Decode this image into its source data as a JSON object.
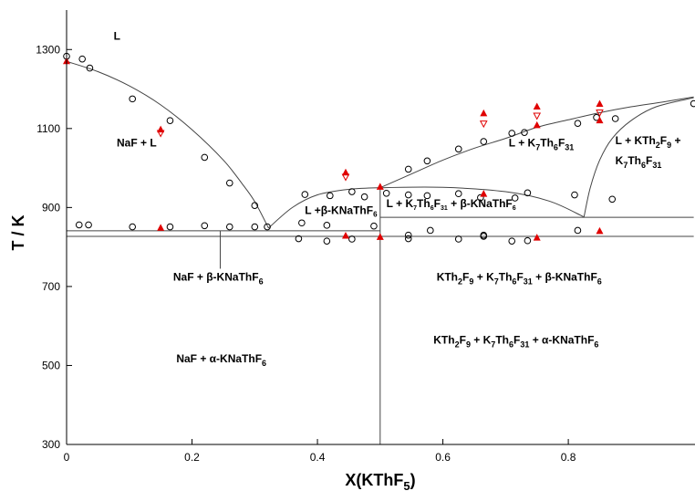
{
  "chart_data": {
    "type": "scatter",
    "xlabel": "X(KThF5)",
    "ylabel": "T / K",
    "xlim": [
      0,
      1
    ],
    "ylim": [
      300,
      1400
    ],
    "xticks": [
      0,
      0.2,
      0.4,
      0.6,
      0.8
    ],
    "yticks": [
      300,
      500,
      700,
      900,
      1100,
      1300
    ],
    "grid": false,
    "series": [
      {
        "marker": "open-circle",
        "color": "#000000",
        "points": [
          [
            0.0,
            1283
          ],
          [
            0.025,
            1276
          ],
          [
            0.037,
            1253
          ],
          [
            0.105,
            1175
          ],
          [
            0.165,
            1120
          ],
          [
            0.22,
            1027
          ],
          [
            0.26,
            962
          ],
          [
            0.3,
            905
          ],
          [
            0.02,
            856
          ],
          [
            0.035,
            856
          ],
          [
            0.105,
            851
          ],
          [
            0.165,
            851
          ],
          [
            0.22,
            854
          ],
          [
            0.26,
            851
          ],
          [
            0.3,
            851
          ],
          [
            0.32,
            851
          ],
          [
            0.38,
            933
          ],
          [
            0.42,
            930
          ],
          [
            0.455,
            940
          ],
          [
            0.475,
            927
          ],
          [
            0.51,
            936
          ],
          [
            0.545,
            932
          ],
          [
            0.575,
            930
          ],
          [
            0.625,
            935
          ],
          [
            0.66,
            925
          ],
          [
            0.715,
            924
          ],
          [
            0.735,
            937
          ],
          [
            0.81,
            932
          ],
          [
            0.87,
            921
          ],
          [
            0.545,
            997
          ],
          [
            0.575,
            1018
          ],
          [
            0.625,
            1048
          ],
          [
            0.665,
            1067
          ],
          [
            0.71,
            1088
          ],
          [
            0.73,
            1090
          ],
          [
            0.815,
            1113
          ],
          [
            0.845,
            1128
          ],
          [
            0.875,
            1125
          ],
          [
            1.0,
            1163
          ],
          [
            0.375,
            861
          ],
          [
            0.415,
            855
          ],
          [
            0.49,
            853
          ],
          [
            0.545,
            830
          ],
          [
            0.58,
            842
          ],
          [
            0.665,
            830
          ],
          [
            0.815,
            842
          ],
          [
            0.37,
            821
          ],
          [
            0.415,
            815
          ],
          [
            0.455,
            820
          ],
          [
            0.545,
            821
          ],
          [
            0.625,
            820
          ],
          [
            0.665,
            827
          ],
          [
            0.71,
            815
          ],
          [
            0.735,
            816
          ]
        ]
      },
      {
        "marker": "filled-triangle",
        "color": "#e00000",
        "points": [
          [
            0.0,
            1270
          ],
          [
            0.15,
            1097
          ],
          [
            0.15,
            848
          ],
          [
            0.445,
            988
          ],
          [
            0.445,
            828
          ],
          [
            0.5,
            952
          ],
          [
            0.5,
            825
          ],
          [
            0.665,
            1138
          ],
          [
            0.665,
            934
          ],
          [
            0.75,
            1155
          ],
          [
            0.75,
            1108
          ],
          [
            0.75,
            823
          ],
          [
            0.85,
            1162
          ],
          [
            0.85,
            1120
          ],
          [
            0.85,
            840
          ]
        ]
      },
      {
        "marker": "open-triangle-down",
        "color": "#e00000",
        "points": [
          [
            0.15,
            1088
          ],
          [
            0.445,
            977
          ],
          [
            0.665,
            1112
          ],
          [
            0.75,
            1132
          ],
          [
            0.85,
            1140
          ]
        ]
      }
    ],
    "lines": [
      {
        "style": "curve",
        "points": [
          [
            0,
            1270
          ],
          [
            0.05,
            1244
          ],
          [
            0.1,
            1208
          ],
          [
            0.15,
            1160
          ],
          [
            0.2,
            1097
          ],
          [
            0.25,
            1020
          ],
          [
            0.28,
            960
          ],
          [
            0.3,
            915
          ],
          [
            0.322,
            848
          ]
        ]
      },
      {
        "style": "curve",
        "points": [
          [
            0.322,
            848
          ],
          [
            0.36,
            900
          ],
          [
            0.4,
            932
          ],
          [
            0.45,
            946
          ],
          [
            0.5,
            950
          ],
          [
            0.6,
            951
          ],
          [
            0.7,
            940
          ],
          [
            0.77,
            916
          ],
          [
            0.825,
            876
          ]
        ]
      },
      {
        "style": "curve",
        "points": [
          [
            0.5,
            950
          ],
          [
            0.55,
            985
          ],
          [
            0.6,
            1020
          ],
          [
            0.65,
            1050
          ],
          [
            0.7,
            1075
          ],
          [
            0.75,
            1103
          ],
          [
            0.8,
            1122
          ],
          [
            0.85,
            1140
          ],
          [
            0.9,
            1155
          ],
          [
            0.95,
            1167
          ],
          [
            1.0,
            1180
          ]
        ]
      },
      {
        "style": "curve",
        "points": [
          [
            0.825,
            876
          ],
          [
            0.835,
            950
          ],
          [
            0.85,
            1020
          ],
          [
            0.87,
            1075
          ],
          [
            0.9,
            1120
          ],
          [
            0.94,
            1155
          ],
          [
            1.0,
            1178
          ]
        ]
      },
      {
        "style": "straight",
        "points": [
          [
            0,
            841
          ],
          [
            0.5,
            841
          ]
        ]
      },
      {
        "style": "straight",
        "points": [
          [
            0,
            827
          ],
          [
            1.0,
            827
          ]
        ]
      },
      {
        "style": "straight",
        "points": [
          [
            0.5,
            875
          ],
          [
            1.0,
            875
          ]
        ]
      },
      {
        "style": "straight",
        "points": [
          [
            0.5,
            300
          ],
          [
            0.5,
            950
          ]
        ]
      },
      {
        "style": "straight",
        "points": [
          [
            0.245,
            745
          ],
          [
            0.245,
            841
          ]
        ]
      }
    ],
    "annotations": [
      {
        "x": 0.075,
        "y": 1325,
        "size": "normal",
        "parts": [
          [
            "L",
            ""
          ]
        ]
      },
      {
        "x": 0.08,
        "y": 1055,
        "size": "normal",
        "parts": [
          [
            "NaF +  L",
            ""
          ]
        ]
      },
      {
        "x": 0.38,
        "y": 884,
        "size": "small",
        "parts": [
          [
            "L +β-KNaThF",
            ""
          ],
          [
            "6",
            "sub"
          ]
        ]
      },
      {
        "x": 0.51,
        "y": 901,
        "size": "xsmall",
        "parts": [
          [
            "L + K",
            ""
          ],
          [
            "7",
            "sub"
          ],
          [
            "Th",
            ""
          ],
          [
            "6",
            "sub"
          ],
          [
            "F",
            ""
          ],
          [
            "31",
            "sub"
          ],
          [
            " + β-KNaThF",
            ""
          ],
          [
            "6",
            "sub"
          ]
        ]
      },
      {
        "x": 0.705,
        "y": 1055,
        "size": "normal",
        "parts": [
          [
            "L + K",
            ""
          ],
          [
            "7",
            "sub"
          ],
          [
            "Th",
            ""
          ],
          [
            "6",
            "sub"
          ],
          [
            "F",
            ""
          ],
          [
            "31",
            "sub"
          ]
        ]
      },
      {
        "x": 0.875,
        "y": 1060,
        "size": "normal",
        "parts": [
          [
            "L + KTh",
            ""
          ],
          [
            "2",
            "sub"
          ],
          [
            "F",
            ""
          ],
          [
            "9",
            "sub"
          ],
          [
            " +",
            ""
          ]
        ]
      },
      {
        "x": 0.875,
        "y": 1010,
        "size": "normal",
        "parts": [
          [
            "K",
            ""
          ],
          [
            "7",
            "sub"
          ],
          [
            "Th",
            ""
          ],
          [
            "6",
            "sub"
          ],
          [
            "F",
            ""
          ],
          [
            "31",
            "sub"
          ]
        ]
      },
      {
        "x": 0.17,
        "y": 715,
        "size": "normal",
        "parts": [
          [
            "NaF + β-KNaThF",
            ""
          ],
          [
            "6",
            "sub"
          ]
        ]
      },
      {
        "x": 0.59,
        "y": 715,
        "size": "normal",
        "parts": [
          [
            "KTh",
            ""
          ],
          [
            "2",
            "sub"
          ],
          [
            "F",
            ""
          ],
          [
            "9",
            "sub"
          ],
          [
            " + K",
            ""
          ],
          [
            "7",
            "sub"
          ],
          [
            "Th",
            ""
          ],
          [
            "6",
            "sub"
          ],
          [
            "F",
            ""
          ],
          [
            "31",
            "sub"
          ],
          [
            " + β-KNaThF",
            ""
          ],
          [
            "6",
            "sub"
          ]
        ]
      },
      {
        "x": 0.585,
        "y": 555,
        "size": "normal",
        "parts": [
          [
            "KTh",
            ""
          ],
          [
            "2",
            "sub"
          ],
          [
            "F",
            ""
          ],
          [
            "9",
            "sub"
          ],
          [
            " + K",
            ""
          ],
          [
            "7",
            "sub"
          ],
          [
            "Th",
            ""
          ],
          [
            "6",
            "sub"
          ],
          [
            "F",
            ""
          ],
          [
            "31",
            "sub"
          ],
          [
            " + α-KNaThF",
            ""
          ],
          [
            "6",
            "sub"
          ]
        ]
      },
      {
        "x": 0.175,
        "y": 508,
        "size": "normal",
        "parts": [
          [
            "NaF + α-KNaThF",
            ""
          ],
          [
            "6",
            "sub"
          ]
        ]
      }
    ]
  }
}
